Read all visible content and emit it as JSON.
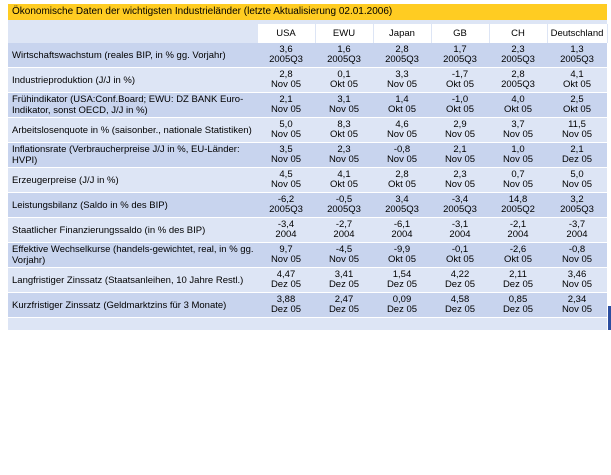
{
  "title": "Ökonomische Daten der wichtigsten Industrieländer (letzte Aktualisierung 02.01.2006)",
  "columns": [
    "USA",
    "EWU",
    "Japan",
    "GB",
    "CH",
    "Deutschland"
  ],
  "rows": [
    {
      "label": "Wirtschaftswachstum (reales BIP, in % gg. Vorjahr)",
      "cells": [
        [
          "3,6",
          "2005Q3"
        ],
        [
          "1,6",
          "2005Q3"
        ],
        [
          "2,8",
          "2005Q3"
        ],
        [
          "1,7",
          "2005Q3"
        ],
        [
          "2,3",
          "2005Q3"
        ],
        [
          "1,3",
          "2005Q3"
        ]
      ]
    },
    {
      "label": "Industrieproduktion (J/J in %)",
      "cells": [
        [
          "2,8",
          "Nov 05"
        ],
        [
          "0,1",
          "Okt 05"
        ],
        [
          "3,3",
          "Nov 05"
        ],
        [
          "-1,7",
          "Okt 05"
        ],
        [
          "2,8",
          "2005Q3"
        ],
        [
          "4,1",
          "Okt 05"
        ]
      ]
    },
    {
      "label": "Frühindikator (USA:Conf.Board; EWU: DZ BANK Euro-Indikator, sonst OECD, J/J in %)",
      "cells": [
        [
          "2,1",
          "Nov 05"
        ],
        [
          "3,1",
          "Nov 05"
        ],
        [
          "1,4",
          "Okt 05"
        ],
        [
          "-1,0",
          "Okt 05"
        ],
        [
          "4,0",
          "Okt 05"
        ],
        [
          "2,5",
          "Okt 05"
        ]
      ]
    },
    {
      "label": "Arbeitslosenquote in % (saisonber., nationale Statistiken)",
      "cells": [
        [
          "5,0",
          "Nov 05"
        ],
        [
          "8,3",
          "Okt 05"
        ],
        [
          "4,6",
          "Nov 05"
        ],
        [
          "2,9",
          "Nov 05"
        ],
        [
          "3,7",
          "Nov 05"
        ],
        [
          "11,5",
          "Nov 05"
        ]
      ]
    },
    {
      "label": "Inflationsrate (Verbraucherpreise J/J in %, EU-Länder: HVPI)",
      "cells": [
        [
          "3,5",
          "Nov 05"
        ],
        [
          "2,3",
          "Nov 05"
        ],
        [
          "-0,8",
          "Nov 05"
        ],
        [
          "2,1",
          "Nov 05"
        ],
        [
          "1,0",
          "Nov 05"
        ],
        [
          "2,1",
          "Dez 05"
        ]
      ]
    },
    {
      "label": "Erzeugerpreise (J/J in %)",
      "cells": [
        [
          "4,5",
          "Nov 05"
        ],
        [
          "4,1",
          "Okt 05"
        ],
        [
          "2,8",
          "Okt 05"
        ],
        [
          "2,3",
          "Nov 05"
        ],
        [
          "0,7",
          "Nov 05"
        ],
        [
          "5,0",
          "Nov 05"
        ]
      ]
    },
    {
      "label": "Leistungsbilanz (Saldo in % des BIP)",
      "cells": [
        [
          "-6,2",
          "2005Q3"
        ],
        [
          "-0,5",
          "2005Q3"
        ],
        [
          "3,4",
          "2005Q3"
        ],
        [
          "-3,4",
          "2005Q3"
        ],
        [
          "14,8",
          "2005Q2"
        ],
        [
          "3,2",
          "2005Q3"
        ]
      ]
    },
    {
      "label": "Staatlicher Finanzierungssaldo (in % des BIP)",
      "cells": [
        [
          "-3,4",
          "2004"
        ],
        [
          "-2,7",
          "2004"
        ],
        [
          "-6,1",
          "2004"
        ],
        [
          "-3,1",
          "2004"
        ],
        [
          "-2,1",
          "2004"
        ],
        [
          "-3,7",
          "2004"
        ]
      ]
    },
    {
      "label": "Effektive Wechselkurse (handels-gewichtet, real, in % gg. Vorjahr)",
      "cells": [
        [
          "9,7",
          "Nov 05"
        ],
        [
          "-4,5",
          "Nov 05"
        ],
        [
          "-9,9",
          "Okt 05"
        ],
        [
          "-0,1",
          "Okt 05"
        ],
        [
          "-2,6",
          "Okt 05"
        ],
        [
          "-0,8",
          "Nov 05"
        ]
      ]
    },
    {
      "label": "Langfristiger Zinssatz (Staatsanleihen, 10 Jahre Restl.)",
      "cells": [
        [
          "4,47",
          "Dez 05"
        ],
        [
          "3,41",
          "Dez 05"
        ],
        [
          "1,54",
          "Dez 05"
        ],
        [
          "4,22",
          "Dez 05"
        ],
        [
          "2,11",
          "Dez 05"
        ],
        [
          "3,46",
          "Nov 05"
        ]
      ]
    },
    {
      "label": "Kurzfristiger Zinssatz (Geldmarktzins für 3 Monate)",
      "cells": [
        [
          "3,88",
          "Dez 05"
        ],
        [
          "2,47",
          "Dez 05"
        ],
        [
          "0,09",
          "Dez 05"
        ],
        [
          "4,58",
          "Dez 05"
        ],
        [
          "0,85",
          "Dez 05"
        ],
        [
          "2,34",
          "Nov 05"
        ]
      ]
    }
  ]
}
